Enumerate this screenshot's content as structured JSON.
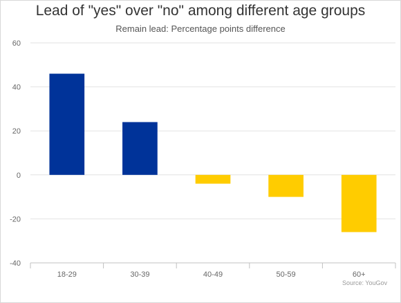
{
  "chart_data": {
    "type": "bar",
    "title": "Lead of \"yes\" over \"no\" among different age groups",
    "subtitle": "Remain lead: Percentage points difference",
    "categories": [
      "18-29",
      "30-39",
      "40-49",
      "50-59",
      "60+"
    ],
    "values": [
      46,
      24,
      -4,
      -10,
      -26
    ],
    "positive_color": "#003399",
    "negative_color": "#FFCC00",
    "ylim": [
      -40,
      60
    ],
    "yticks": [
      60,
      40,
      20,
      0,
      -20,
      -40
    ],
    "grid": true,
    "xlabel": "",
    "ylabel": "",
    "credit": "Source: YouGov"
  }
}
